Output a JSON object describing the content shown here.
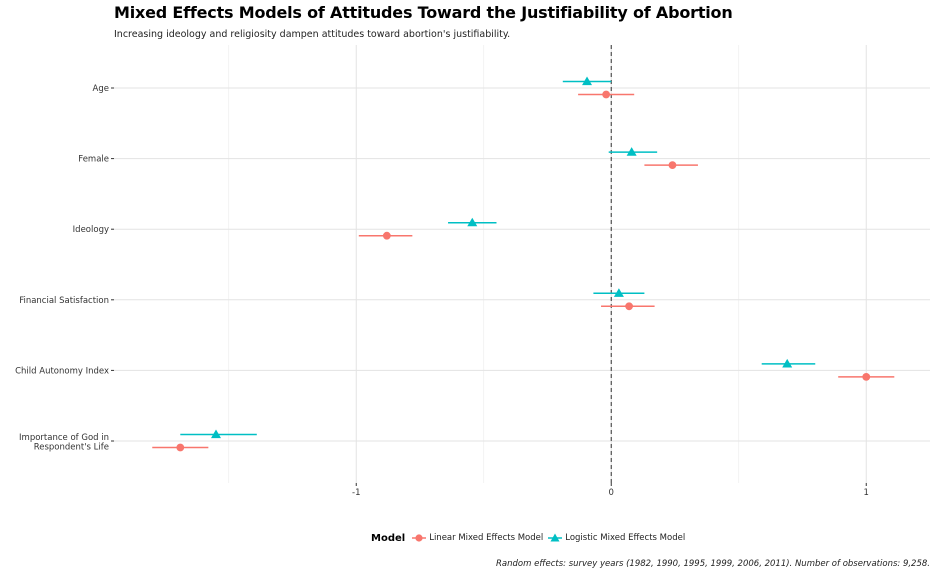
{
  "chart_data": {
    "type": "scatter",
    "title": "Mixed Effects Models of Attitudes Toward the Justifiability of Abortion",
    "subtitle": "Increasing ideology and religiosity dampen attitudes toward abortion's justifiability.",
    "caption": "Random effects: survey years (1982, 1990, 1995, 1999, 2006, 2011). Number of observations: 9,258.",
    "xlabel": "",
    "ylabel": "",
    "xlim": [
      -1.95,
      1.25
    ],
    "x_ticks": [
      -1,
      0,
      1
    ],
    "x_tick_labels": [
      "-1",
      "0",
      "1"
    ],
    "reference_line": 0,
    "grid": true,
    "legend_position": "bottom",
    "legend_title": "Model",
    "categories": [
      "Age",
      "Female",
      "Ideology",
      "Financial Satisfaction",
      "Child Autonomy Index",
      "Importance of God in Respondent's Life"
    ],
    "series": [
      {
        "name": "Linear Mixed Effects Model",
        "color": "#F8766D",
        "marker": "circle",
        "estimates": [
          -0.02,
          0.24,
          -0.88,
          0.07,
          1.0,
          -1.69
        ],
        "lower": [
          -0.13,
          0.13,
          -0.99,
          -0.04,
          0.89,
          -1.8
        ],
        "upper": [
          0.09,
          0.34,
          -0.78,
          0.17,
          1.11,
          -1.58
        ]
      },
      {
        "name": "Logistic Mixed Effects Model",
        "color": "#00BFC4",
        "marker": "triangle",
        "estimates": [
          -0.095,
          0.08,
          -0.545,
          0.03,
          0.69,
          -1.55
        ],
        "lower": [
          -0.19,
          -0.01,
          -0.64,
          -0.07,
          0.59,
          -1.69
        ],
        "upper": [
          0.0,
          0.18,
          -0.45,
          0.13,
          0.8,
          -1.39
        ]
      }
    ]
  }
}
